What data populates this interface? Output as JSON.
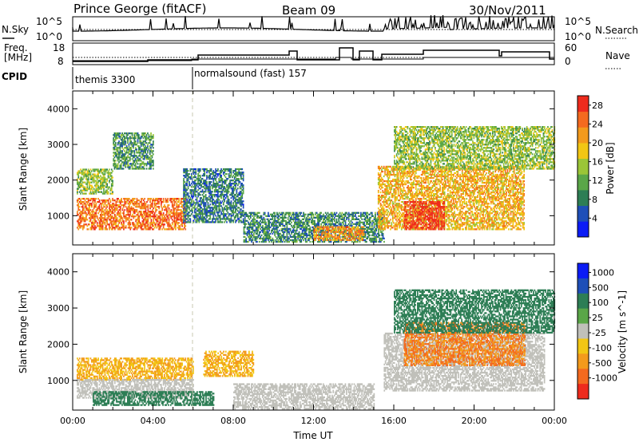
{
  "header": {
    "station": "Prince George (fitACF)",
    "beam": "Beam 09",
    "date": "30/Nov/2011"
  },
  "summary_panels": {
    "nsky_label": "N.Sky",
    "nsearch_label": "N.Search",
    "freq_label": "Freq.",
    "freq_unit": "[MHz]",
    "nave_label": "Nave",
    "cpid_label": "CPID",
    "left_ticks_top": [
      "10^5",
      "10^0"
    ],
    "right_ticks_top": [
      "10^5",
      "10^0"
    ],
    "left_ticks_freq": [
      "18",
      "8"
    ],
    "right_ticks_nave": [
      "60",
      "0"
    ],
    "cpid_segments": [
      {
        "label": "themis 3300",
        "start_hr": 0.0
      },
      {
        "label": "normalsound (fast) 157",
        "start_hr": 6.0
      }
    ]
  },
  "colors": {
    "power_scale": [
      "#0b1cf5",
      "#1e4fb8",
      "#2d7e55",
      "#5aa648",
      "#9bc537",
      "#f2c614",
      "#f39a1c",
      "#f46a1f",
      "#ee2b1d"
    ],
    "velocity_scale": [
      "#0b1cf5",
      "#1e4fb8",
      "#2d7e55",
      "#5aa648",
      "#c0c0ba",
      "#f2c614",
      "#f39a1c",
      "#f46a1f",
      "#ee2b1d"
    ]
  },
  "chart_data": [
    {
      "type": "heatmap",
      "name": "power",
      "xlabel": "",
      "ylabel": "Slant Range [km]",
      "xlim": [
        0,
        24
      ],
      "ylim": [
        180,
        4500
      ],
      "yticks": [
        "1000",
        "2000",
        "3000",
        "4000"
      ],
      "colorbar": {
        "label": "Power [dB]",
        "ticks": [
          "4",
          "8",
          "12",
          "16",
          "20",
          "24",
          "28"
        ],
        "range": [
          0,
          30
        ]
      },
      "features": [
        {
          "t0": 0.2,
          "t1": 5.6,
          "r0": 600,
          "r1": 1500,
          "value": 24
        },
        {
          "t0": 0.2,
          "t1": 2.0,
          "r0": 1600,
          "r1": 2300,
          "value": 14
        },
        {
          "t0": 2.0,
          "t1": 4.0,
          "r0": 2300,
          "r1": 3300,
          "value": 10
        },
        {
          "t0": 5.5,
          "t1": 8.5,
          "r0": 800,
          "r1": 2300,
          "value": 8
        },
        {
          "t0": 8.5,
          "t1": 15.5,
          "r0": 250,
          "r1": 1100,
          "value": 9
        },
        {
          "t0": 12.0,
          "t1": 14.5,
          "r0": 300,
          "r1": 700,
          "value": 22
        },
        {
          "t0": 15.2,
          "t1": 22.5,
          "r0": 600,
          "r1": 2400,
          "value": 20
        },
        {
          "t0": 16.5,
          "t1": 18.5,
          "r0": 600,
          "r1": 1400,
          "value": 28
        },
        {
          "t0": 16.0,
          "t1": 24.0,
          "r0": 2300,
          "r1": 3500,
          "value": 14
        }
      ]
    },
    {
      "type": "heatmap",
      "name": "velocity",
      "xlabel": "Time UT",
      "ylabel": "Slant Range [km]",
      "xlim": [
        0,
        24
      ],
      "ylim": [
        180,
        4500
      ],
      "xticks": [
        "00:00",
        "04:00",
        "08:00",
        "12:00",
        "16:00",
        "20:00",
        "00:00"
      ],
      "yticks": [
        "1000",
        "2000",
        "3000",
        "4000"
      ],
      "colorbar": {
        "label": "Velocity [m s^-1]",
        "ticks": [
          "1000",
          "500",
          "100",
          "25",
          "-25",
          "-100",
          "-500",
          "-1000"
        ]
      },
      "features": [
        {
          "t0": 0.2,
          "t1": 6.0,
          "r0": 1000,
          "r1": 1600,
          "value": -100
        },
        {
          "t0": 0.2,
          "t1": 6.0,
          "r0": 500,
          "r1": 1000,
          "value": 0
        },
        {
          "t0": 1.0,
          "t1": 7.0,
          "r0": 300,
          "r1": 700,
          "value": 200
        },
        {
          "t0": 6.5,
          "t1": 9.0,
          "r0": 1100,
          "r1": 1800,
          "value": -100
        },
        {
          "t0": 8.0,
          "t1": 15.0,
          "r0": 200,
          "r1": 900,
          "value": 0
        },
        {
          "t0": 15.5,
          "t1": 23.5,
          "r0": 700,
          "r1": 2300,
          "value": 0
        },
        {
          "t0": 16.5,
          "t1": 22.5,
          "r0": 1400,
          "r1": 2600,
          "value": -500
        },
        {
          "t0": 16.0,
          "t1": 24.0,
          "r0": 2300,
          "r1": 3500,
          "value": 200
        }
      ]
    }
  ]
}
